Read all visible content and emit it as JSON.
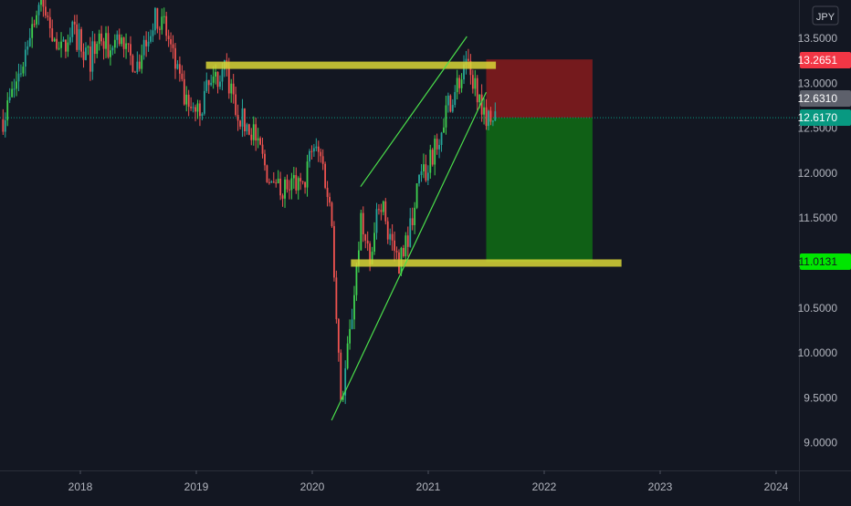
{
  "currency_button": "JPY",
  "colors": {
    "background": "#131722",
    "axis_text": "#b2b5be",
    "up": "#26a69a",
    "up_bright": "#3fd14f",
    "down": "#ef5350",
    "zone_line": "#d9d636",
    "trend_line": "#4be04b",
    "stop_zone": "#7a1a1e",
    "target_zone": "#106416",
    "stop_badge": "#f23645",
    "last_badge": "#5d606b",
    "current_badge": "#089981",
    "target_badge": "#00e600",
    "price_line": "#089981"
  },
  "price_labels": {
    "stop": "13.2651",
    "last": "12.6310",
    "current": "12.6170",
    "target": "11.0131"
  },
  "chart_data": {
    "type": "candlestick",
    "title": "",
    "instrument_currency": "JPY",
    "x_axis": {
      "ticks": [
        "2018",
        "2019",
        "2020",
        "2021",
        "2022",
        "2023",
        "2024"
      ],
      "range": [
        "2017-05",
        "2024-03"
      ]
    },
    "y_axis": {
      "position": "right",
      "ticks": [
        "13.5000",
        "13.0000",
        "12.5000",
        "12.0000",
        "11.5000",
        "11.0000",
        "10.5000",
        "10.0000",
        "9.5000",
        "9.0000"
      ],
      "ylim": [
        8.85,
        13.85
      ]
    },
    "grid": false,
    "price_path": [
      [
        "2017-05",
        12.6
      ],
      [
        "2017-06",
        12.9
      ],
      [
        "2017-07",
        13.2
      ],
      [
        "2017-08",
        13.7
      ],
      [
        "2017-09",
        13.9
      ],
      [
        "2017-10",
        13.6
      ],
      [
        "2017-11",
        13.35
      ],
      [
        "2017-12",
        13.6
      ],
      [
        "2018-01",
        13.45
      ],
      [
        "2018-02",
        13.25
      ],
      [
        "2018-03",
        13.55
      ],
      [
        "2018-04",
        13.35
      ],
      [
        "2018-05",
        13.5
      ],
      [
        "2018-06",
        13.3
      ],
      [
        "2018-07",
        13.2
      ],
      [
        "2018-08",
        13.55
      ],
      [
        "2018-09",
        13.75
      ],
      [
        "2018-10",
        13.55
      ],
      [
        "2018-11",
        13.1
      ],
      [
        "2018-12",
        12.75
      ],
      [
        "2019-01",
        12.65
      ],
      [
        "2019-02",
        12.9
      ],
      [
        "2019-03",
        13.05
      ],
      [
        "2019-04",
        13.15
      ],
      [
        "2019-05",
        12.75
      ],
      [
        "2019-06",
        12.55
      ],
      [
        "2019-07",
        12.45
      ],
      [
        "2019-08",
        12.1
      ],
      [
        "2019-09",
        11.8
      ],
      [
        "2019-10",
        11.85
      ],
      [
        "2019-11",
        11.9
      ],
      [
        "2019-12",
        11.8
      ],
      [
        "2020-01",
        12.3
      ],
      [
        "2020-02",
        12.15
      ],
      [
        "2020-03",
        11.5
      ],
      [
        "2020-04",
        9.45
      ],
      [
        "2020-05",
        10.3
      ],
      [
        "2020-06",
        11.45
      ],
      [
        "2020-07",
        10.95
      ],
      [
        "2020-08",
        11.75
      ],
      [
        "2020-09",
        11.3
      ],
      [
        "2020-10",
        11.0
      ],
      [
        "2020-11",
        11.35
      ],
      [
        "2020-12",
        11.9
      ],
      [
        "2021-01",
        12.05
      ],
      [
        "2021-02",
        12.4
      ],
      [
        "2021-03",
        12.75
      ],
      [
        "2021-04",
        13.0
      ],
      [
        "2021-05",
        13.15
      ],
      [
        "2021-06",
        12.95
      ],
      [
        "2021-07",
        12.65
      ],
      [
        "2021-08",
        12.6
      ]
    ],
    "candles_approximate": true,
    "annotations": [
      {
        "type": "resistance_zone",
        "price": 13.2,
        "from": "2019-02",
        "to": "2021-08"
      },
      {
        "type": "support_zone",
        "price": 11.0,
        "from": "2020-05",
        "to": "2022-09"
      },
      {
        "type": "rising_channel_lower",
        "from": [
          "2020-03",
          9.25
        ],
        "to": [
          "2021-07",
          12.9
        ]
      },
      {
        "type": "rising_channel_upper",
        "from": [
          "2020-06",
          11.85
        ],
        "to": [
          "2021-05",
          13.52
        ]
      },
      {
        "type": "short_position",
        "entry": 12.617,
        "stop": 13.2651,
        "target": 11.0131,
        "from": "2021-07",
        "to": "2022-06"
      }
    ]
  }
}
